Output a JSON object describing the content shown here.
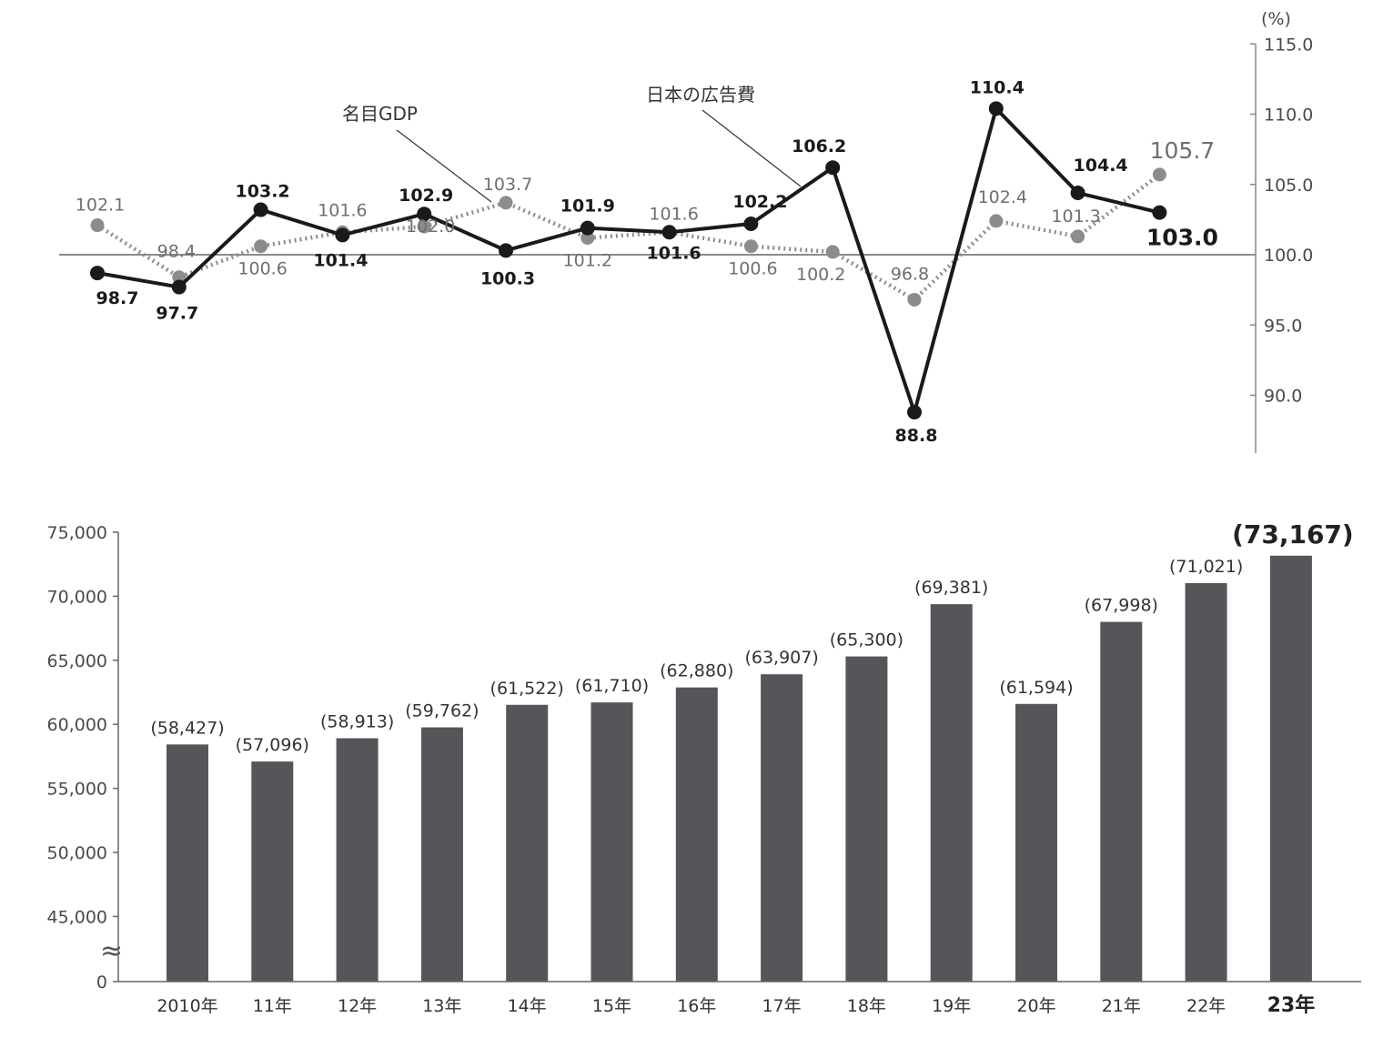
{
  "colors": {
    "ad_line": "#1a1a1a",
    "gdp_line": "#8c8c8c",
    "bar": "#55565a",
    "axis": "#666666",
    "text_dark": "#1a1a1a",
    "text_gray": "#6f6f6f"
  },
  "chart_data": [
    {
      "type": "line",
      "categories": [
        "2010年",
        "11年",
        "12年",
        "13年",
        "14年",
        "15年",
        "16年",
        "17年",
        "18年",
        "19年",
        "20年",
        "21年",
        "22年",
        "23年"
      ],
      "series": [
        {
          "name": "日本の広告費",
          "style": "solid",
          "color": "#1a1a1a",
          "values": [
            98.7,
            97.7,
            103.2,
            101.4,
            102.9,
            100.3,
            101.9,
            101.6,
            102.2,
            106.2,
            88.8,
            110.4,
            104.4,
            103.0
          ],
          "labels": [
            "98.7",
            "97.7",
            "103.2",
            "101.4",
            "102.9",
            "100.3",
            "101.9",
            "101.6",
            "102.2",
            "106.2",
            "88.8",
            "110.4",
            "104.4",
            "103.0"
          ]
        },
        {
          "name": "名目GDP",
          "style": "dotted",
          "color": "#8c8c8c",
          "values": [
            102.1,
            98.4,
            100.6,
            101.6,
            102.0,
            103.7,
            101.2,
            101.6,
            100.6,
            100.2,
            96.8,
            102.4,
            101.3,
            105.7
          ],
          "labels": [
            "102.1",
            "98.4",
            "100.6",
            "101.6",
            "102.0",
            "103.7",
            "101.2",
            "101.6",
            "100.6",
            "100.2",
            "96.8",
            "102.4",
            "101.3",
            "105.7"
          ]
        }
      ],
      "unit": "(%)",
      "ylim": [
        85,
        115
      ],
      "reference_line": 100,
      "y_ticks": [
        90,
        95,
        100,
        105,
        110,
        115
      ],
      "y_tick_labels": [
        "90.0",
        "95.0",
        "100.0",
        "105.0",
        "110.0",
        "115.0"
      ],
      "y_axis_side": "right"
    },
    {
      "type": "bar",
      "categories": [
        "2010年",
        "11年",
        "12年",
        "13年",
        "14年",
        "15年",
        "16年",
        "17年",
        "18年",
        "19年",
        "20年",
        "21年",
        "22年",
        "23年"
      ],
      "values": [
        58427,
        57096,
        58913,
        59762,
        61522,
        61710,
        62880,
        63907,
        65300,
        69381,
        61594,
        67998,
        71021,
        73167
      ],
      "labels": [
        "(58,427)",
        "(57,096)",
        "(58,913)",
        "(59,762)",
        "(61,522)",
        "(61,710)",
        "(62,880)",
        "(63,907)",
        "(65,300)",
        "(69,381)",
        "(61,594)",
        "(67,998)",
        "(71,021)",
        "(73,167)"
      ],
      "ylim": [
        40000,
        75000
      ],
      "axis_break": true,
      "y_ticks": [
        0,
        45000,
        50000,
        55000,
        60000,
        65000,
        70000,
        75000
      ],
      "y_tick_labels": [
        "0",
        "45,000",
        "50,000",
        "55,000",
        "60,000",
        "65,000",
        "70,000",
        "75,000"
      ],
      "highlight_last": true
    }
  ]
}
